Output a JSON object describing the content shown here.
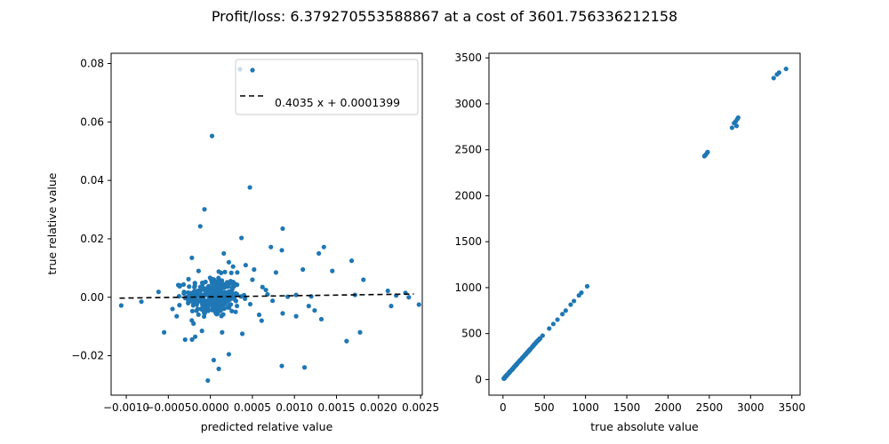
{
  "figure": {
    "title": "Profit/loss: 6.379270553588867 at a cost of 3601.756336212158"
  },
  "colors": {
    "points": "#1f77b4",
    "fit_line": "#000000",
    "axes": "#000000",
    "background": "#ffffff"
  },
  "chart_data": [
    {
      "type": "scatter",
      "xlabel": "predicted relative value",
      "ylabel": "true relative value",
      "xlim": [
        -0.00118,
        0.00252
      ],
      "ylim": [
        -0.0335,
        0.0835
      ],
      "xticks": [
        -0.001,
        -0.0005,
        0.0,
        0.0005,
        0.001,
        0.0015,
        0.002,
        0.0025
      ],
      "xtick_labels": [
        "−0.0010",
        "−0.0005",
        "0.0000",
        "0.0005",
        "0.0010",
        "0.0015",
        "0.0020",
        "0.0025"
      ],
      "yticks": [
        -0.02,
        0.0,
        0.02,
        0.04,
        0.06,
        0.08
      ],
      "ytick_labels": [
        "−0.02",
        "0.00",
        "0.02",
        "0.04",
        "0.06",
        "0.08"
      ],
      "grid": false,
      "legend": {
        "placement": "upper right",
        "entries": [
          "",
          "0.4035 x + 0.0001399"
        ]
      },
      "fit": {
        "label": "0.4035 x + 0.0001399",
        "slope": 0.4035,
        "intercept": 0.0001399
      },
      "points": [
        [
          2e-05,
          0.0552
        ],
        [
          0.00047,
          0.0376
        ],
        [
          -7e-05,
          0.0301
        ],
        [
          0.00086,
          0.0235
        ],
        [
          -0.00012,
          0.0243
        ],
        [
          0.00037,
          0.0203
        ],
        [
          0.00072,
          0.0172
        ],
        [
          0.00135,
          0.0172
        ],
        [
          0.00168,
          0.0125
        ],
        [
          0.00129,
          0.015
        ],
        [
          0.00016,
          0.015
        ],
        [
          0.00085,
          0.0161
        ],
        [
          0.00022,
          0.012
        ],
        [
          0.00027,
          0.0105
        ],
        [
          0.00042,
          0.011
        ],
        [
          -0.00022,
          0.0135
        ],
        [
          -0.00014,
          0.009
        ],
        [
          0.0001,
          0.0088
        ],
        [
          0.00032,
          0.0085
        ],
        [
          0.00052,
          0.0095
        ],
        [
          0.00078,
          0.0085
        ],
        [
          0.0011,
          0.0095
        ],
        [
          0.00145,
          0.009
        ],
        [
          0.00182,
          0.006
        ],
        [
          0.00211,
          0.0022
        ],
        [
          0.00236,
          0.0
        ],
        [
          0.00221,
          0.0006
        ],
        [
          0.00232,
          0.0015
        ],
        [
          0.00172,
          0.0008
        ],
        [
          0.0012,
          0.0003
        ],
        [
          0.00102,
          0.0008
        ],
        [
          0.00092,
          0.0002
        ],
        [
          0.00062,
          0.0035
        ],
        [
          0.00066,
          0.0025
        ],
        [
          -0.00026,
          0.0062
        ],
        [
          -0.00036,
          0.004
        ],
        [
          -0.00055,
          -0.012
        ],
        [
          -0.0002,
          -0.009
        ],
        [
          -0.0001,
          -0.0115
        ],
        [
          4e-05,
          -0.0215
        ],
        [
          -3e-05,
          -0.0285
        ],
        [
          0.00022,
          -0.0195
        ],
        [
          0.0001,
          -0.0245
        ],
        [
          0.00085,
          -0.0235
        ],
        [
          0.00112,
          -0.024
        ],
        [
          0.00162,
          -0.015
        ],
        [
          0.00178,
          -0.012
        ],
        [
          0.00215,
          -0.003
        ],
        [
          0.00248,
          -0.0025
        ],
        [
          -0.00106,
          -0.0028
        ],
        [
          -0.00082,
          -0.0015
        ],
        [
          0.00132,
          -0.0075
        ],
        [
          0.00102,
          -0.0065
        ],
        [
          0.00086,
          -0.0055
        ],
        [
          0.00061,
          -0.008
        ],
        [
          0.0003,
          -0.005
        ],
        [
          0.00014,
          -0.012
        ],
        [
          -0.0003,
          -0.0145
        ],
        [
          -0.00018,
          -0.0135
        ],
        [
          0.00038,
          -0.0125
        ],
        [
          0.00058,
          -0.006
        ],
        [
          -0.00045,
          -0.004
        ],
        [
          0.00124,
          -0.0045
        ],
        [
          0.00074,
          -0.0012
        ],
        [
          0.00117,
          -0.003
        ],
        [
          -0.0004,
          -0.0065
        ],
        [
          0.0005,
          0.006
        ],
        [
          0.00068,
          0.001
        ]
      ],
      "cluster": {
        "center": [
          3e-05,
          0.0002
        ],
        "spread": [
          0.00016,
          0.0035
        ],
        "count": 300
      }
    },
    {
      "type": "scatter",
      "xlabel": "true absolute value",
      "ylabel": "",
      "xlim": [
        -170,
        3600
      ],
      "ylim": [
        -170,
        3550
      ],
      "xticks": [
        0,
        500,
        1000,
        1500,
        2000,
        2500,
        3000,
        3500
      ],
      "xtick_labels": [
        "0",
        "500",
        "1000",
        "1500",
        "2000",
        "2500",
        "3000",
        "3500"
      ],
      "yticks": [
        0,
        500,
        1000,
        1500,
        2000,
        2500,
        3000,
        3500
      ],
      "ytick_labels": [
        "0",
        "500",
        "1000",
        "1500",
        "2000",
        "2500",
        "3000",
        "3500"
      ],
      "grid": false,
      "points": [
        [
          2440,
          2430
        ],
        [
          2460,
          2450
        ],
        [
          2475,
          2470
        ],
        [
          2450,
          2440
        ],
        [
          2480,
          2475
        ],
        [
          2775,
          2740
        ],
        [
          2800,
          2790
        ],
        [
          2820,
          2810
        ],
        [
          2840,
          2835
        ],
        [
          2830,
          2760
        ],
        [
          2850,
          2850
        ],
        [
          3280,
          3280
        ],
        [
          3320,
          3320
        ],
        [
          3345,
          3340
        ],
        [
          3430,
          3380
        ],
        [
          1020,
          1015
        ],
        [
          950,
          945
        ],
        [
          920,
          915
        ],
        [
          860,
          855
        ],
        [
          820,
          815
        ],
        [
          760,
          750
        ],
        [
          720,
          712
        ],
        [
          660,
          652
        ],
        [
          610,
          605
        ],
        [
          560,
          555
        ],
        [
          480,
          478
        ]
      ],
      "diagonal_run": {
        "from": 10,
        "to": 450,
        "count": 130
      }
    }
  ]
}
